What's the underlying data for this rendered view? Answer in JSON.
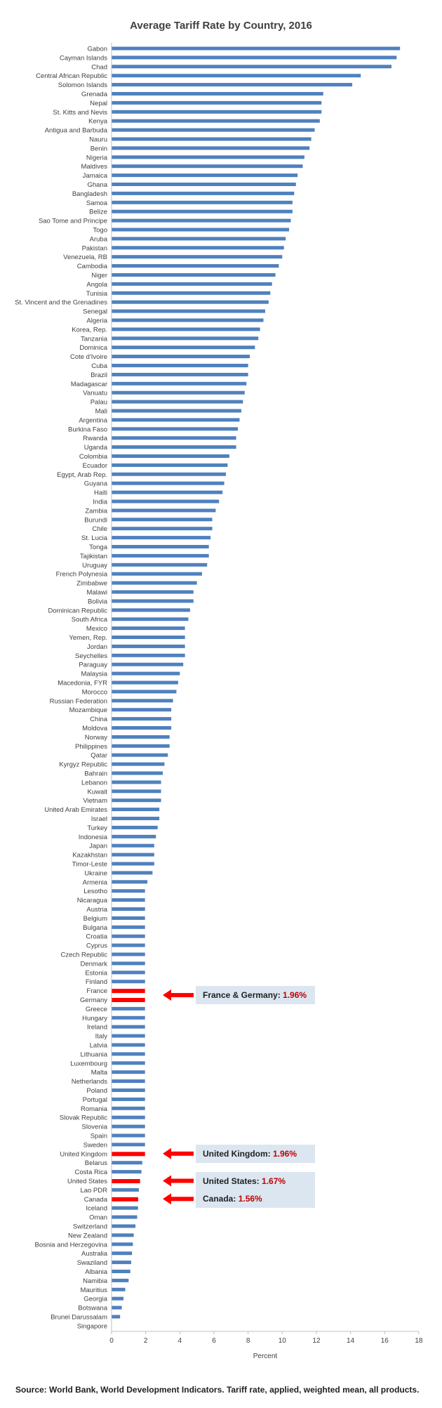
{
  "chart_data": {
    "type": "bar",
    "orientation": "horizontal",
    "title": "Average Tariff Rate by Country, 2016",
    "xlabel": "Percent",
    "ylabel": "",
    "xlim": [
      0,
      18
    ],
    "xticks": [
      0,
      2,
      4,
      6,
      8,
      10,
      12,
      14,
      16,
      18
    ],
    "grid": false,
    "bar_color": "#4f81bd",
    "highlight_color": "#ff0000",
    "categories": [
      "Gabon",
      "Cayman Islands",
      "Chad",
      "Central African Republic",
      "Solomon Islands",
      "Grenada",
      "Nepal",
      "St. Kitts and Nevis",
      "Kenya",
      "Antigua and Barbuda",
      "Nauru",
      "Benin",
      "Nigeria",
      "Maldives",
      "Jamaica",
      "Ghana",
      "Bangladesh",
      "Samoa",
      "Belize",
      "Sao Tome and Principe",
      "Togo",
      "Aruba",
      "Pakistan",
      "Venezuela, RB",
      "Cambodia",
      "Niger",
      "Angola",
      "Tunisia",
      "St. Vincent and the Grenadines",
      "Senegal",
      "Algeria",
      "Korea, Rep.",
      "Tanzania",
      "Dominica",
      "Cote d'Ivoire",
      "Cuba",
      "Brazil",
      "Madagascar",
      "Vanuatu",
      "Palau",
      "Mali",
      "Argentina",
      "Burkina Faso",
      "Rwanda",
      "Uganda",
      "Colombia",
      "Ecuador",
      "Egypt, Arab Rep.",
      "Guyana",
      "Haiti",
      "India",
      "Zambia",
      "Burundi",
      "Chile",
      "St. Lucia",
      "Tonga",
      "Tajikistan",
      "Uruguay",
      "French Polynesia",
      "Zimbabwe",
      "Malawi",
      "Bolivia",
      "Dominican Republic",
      "South Africa",
      "Mexico",
      "Yemen, Rep.",
      "Jordan",
      "Seychelles",
      "Paraguay",
      "Malaysia",
      "Macedonia, FYR",
      "Morocco",
      "Russian Federation",
      "Mozambique",
      "China",
      "Moldova",
      "Norway",
      "Philippines",
      "Qatar",
      "Kyrgyz Republic",
      "Bahrain",
      "Lebanon",
      "Kuwait",
      "Vietnam",
      "United Arab Emirates",
      "Israel",
      "Turkey",
      "Indonesia",
      "Japan",
      "Kazakhstan",
      "Timor-Leste",
      "Ukraine",
      "Armenia",
      "Lesotho",
      "Nicaragua",
      "Austria",
      "Belgium",
      "Bulgaria",
      "Croatia",
      "Cyprus",
      "Czech Republic",
      "Denmark",
      "Estonia",
      "Finland",
      "France",
      "Germany",
      "Greece",
      "Hungary",
      "Ireland",
      "Italy",
      "Latvia",
      "Lithuania",
      "Luxembourg",
      "Malta",
      "Netherlands",
      "Poland",
      "Portugal",
      "Romania",
      "Slovak Republic",
      "Slovenia",
      "Spain",
      "Sweden",
      "United Kingdom",
      "Belarus",
      "Costa Rica",
      "United States",
      "Lao PDR",
      "Canada",
      "Iceland",
      "Oman",
      "Switzerland",
      "New Zealand",
      "Bosnia and Herzegovina",
      "Australia",
      "Swaziland",
      "Albania",
      "Namibia",
      "Mauritius",
      "Georgia",
      "Botswana",
      "Brunei Darussalam",
      "Singapore"
    ],
    "values": [
      16.9,
      16.7,
      16.4,
      14.6,
      14.1,
      12.4,
      12.3,
      12.3,
      12.2,
      11.9,
      11.7,
      11.6,
      11.3,
      11.2,
      10.9,
      10.8,
      10.7,
      10.6,
      10.6,
      10.5,
      10.4,
      10.2,
      10.1,
      10.0,
      9.8,
      9.6,
      9.4,
      9.3,
      9.2,
      9.0,
      8.9,
      8.7,
      8.6,
      8.4,
      8.1,
      8.0,
      8.0,
      7.9,
      7.8,
      7.7,
      7.6,
      7.5,
      7.4,
      7.3,
      7.3,
      6.9,
      6.8,
      6.7,
      6.6,
      6.5,
      6.3,
      6.1,
      5.9,
      5.9,
      5.8,
      5.7,
      5.7,
      5.6,
      5.3,
      5.0,
      4.8,
      4.8,
      4.6,
      4.5,
      4.3,
      4.3,
      4.3,
      4.3,
      4.2,
      4.0,
      3.9,
      3.8,
      3.6,
      3.5,
      3.5,
      3.5,
      3.4,
      3.4,
      3.3,
      3.1,
      3.0,
      2.9,
      2.9,
      2.9,
      2.8,
      2.8,
      2.7,
      2.6,
      2.5,
      2.5,
      2.5,
      2.4,
      2.1,
      1.96,
      1.96,
      1.96,
      1.96,
      1.96,
      1.96,
      1.96,
      1.96,
      1.96,
      1.96,
      1.96,
      1.96,
      1.96,
      1.96,
      1.96,
      1.96,
      1.96,
      1.96,
      1.96,
      1.96,
      1.96,
      1.96,
      1.96,
      1.96,
      1.96,
      1.96,
      1.96,
      1.96,
      1.96,
      1.96,
      1.8,
      1.75,
      1.67,
      1.6,
      1.56,
      1.55,
      1.5,
      1.4,
      1.3,
      1.25,
      1.2,
      1.15,
      1.1,
      1.0,
      0.8,
      0.7,
      0.6,
      0.5,
      0.0
    ],
    "highlighted": [
      "France",
      "Germany",
      "United Kingdom",
      "United States",
      "Canada"
    ],
    "annotations": [
      {
        "label": "France & Germany:",
        "value": "1.96%",
        "targets": [
          "France",
          "Germany"
        ]
      },
      {
        "label": "United Kingdom:",
        "value": "1.96%",
        "targets": [
          "United Kingdom"
        ]
      },
      {
        "label": "United States:",
        "value": "1.67%",
        "targets": [
          "United States"
        ]
      },
      {
        "label": "Canada:",
        "value": "1.56%",
        "targets": [
          "Canada"
        ]
      }
    ],
    "source": "Source: World Bank, World Development Indicators. Tariff rate, applied, weighted mean, all products."
  }
}
